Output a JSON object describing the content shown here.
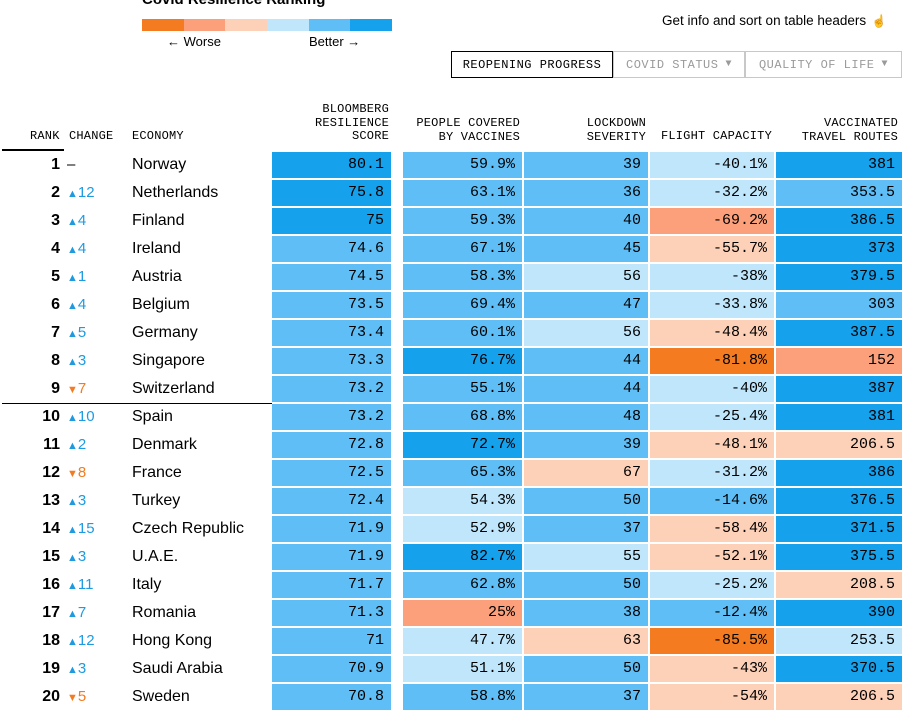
{
  "title": "Covid Resilience Ranking",
  "legend": {
    "colors": [
      "#f47b20",
      "#fba07a",
      "#fdd0b8",
      "#bfe6fb",
      "#5fbef5",
      "#16a1ec"
    ],
    "worse_label": "← Worse",
    "better_label": "Better →"
  },
  "info_text": "Get info and sort on table headers",
  "info_icon": "pointer-hand-icon",
  "tabs": [
    {
      "label": "REOPENING PROGRESS",
      "active": true
    },
    {
      "label": "COVID STATUS",
      "active": false
    },
    {
      "label": "QUALITY OF LIFE",
      "active": false
    }
  ],
  "headers": {
    "rank": "RANK",
    "change": "CHANGE",
    "economy": "ECONOMY",
    "brs": [
      "BLOOMBERG",
      "RESILIENCE",
      "SCORE"
    ],
    "people": [
      "PEOPLE COVERED",
      "BY VACCINES"
    ],
    "lockdown": [
      "LOCKDOWN",
      "SEVERITY"
    ],
    "flight": [
      "FLIGHT CAPACITY"
    ],
    "vaccinated": [
      "VACCINATED",
      "TRAVEL ROUTES"
    ]
  },
  "colors": {
    "up_arrow": "#1e9be0",
    "down_arrow": "#f47b20"
  },
  "rows": [
    {
      "rank": "1",
      "dir": "none",
      "change": "–",
      "economy": "Norway",
      "brs": "80.1",
      "people": "59.9%",
      "lockdown": "39",
      "flight": "-40.1%",
      "vacc": "381",
      "cc": [
        "#16a1ec",
        "#5fbef5",
        "#5fbef5",
        "#bfe6fb",
        "#16a1ec"
      ]
    },
    {
      "rank": "2",
      "dir": "up",
      "change": "12",
      "economy": "Netherlands",
      "brs": "75.8",
      "people": "63.1%",
      "lockdown": "36",
      "flight": "-32.2%",
      "vacc": "353.5",
      "cc": [
        "#16a1ec",
        "#5fbef5",
        "#5fbef5",
        "#bfe6fb",
        "#5fbef5"
      ]
    },
    {
      "rank": "3",
      "dir": "up",
      "change": "4",
      "economy": "Finland",
      "brs": "75",
      "people": "59.3%",
      "lockdown": "40",
      "flight": "-69.2%",
      "vacc": "386.5",
      "cc": [
        "#16a1ec",
        "#5fbef5",
        "#5fbef5",
        "#fba07a",
        "#16a1ec"
      ]
    },
    {
      "rank": "4",
      "dir": "up",
      "change": "4",
      "economy": "Ireland",
      "brs": "74.6",
      "people": "67.1%",
      "lockdown": "45",
      "flight": "-55.7%",
      "vacc": "373",
      "cc": [
        "#5fbef5",
        "#5fbef5",
        "#5fbef5",
        "#fdd0b8",
        "#16a1ec"
      ]
    },
    {
      "rank": "5",
      "dir": "up",
      "change": "1",
      "economy": "Austria",
      "brs": "74.5",
      "people": "58.3%",
      "lockdown": "56",
      "flight": "-38%",
      "vacc": "379.5",
      "cc": [
        "#5fbef5",
        "#5fbef5",
        "#bfe6fb",
        "#bfe6fb",
        "#16a1ec"
      ]
    },
    {
      "rank": "6",
      "dir": "up",
      "change": "4",
      "economy": "Belgium",
      "brs": "73.5",
      "people": "69.4%",
      "lockdown": "47",
      "flight": "-33.8%",
      "vacc": "303",
      "cc": [
        "#5fbef5",
        "#5fbef5",
        "#5fbef5",
        "#bfe6fb",
        "#5fbef5"
      ]
    },
    {
      "rank": "7",
      "dir": "up",
      "change": "5",
      "economy": "Germany",
      "brs": "73.4",
      "people": "60.1%",
      "lockdown": "56",
      "flight": "-48.4%",
      "vacc": "387.5",
      "cc": [
        "#5fbef5",
        "#5fbef5",
        "#bfe6fb",
        "#fdd0b8",
        "#16a1ec"
      ]
    },
    {
      "rank": "8",
      "dir": "up",
      "change": "3",
      "economy": "Singapore",
      "brs": "73.3",
      "people": "76.7%",
      "lockdown": "44",
      "flight": "-81.8%",
      "vacc": "152",
      "cc": [
        "#5fbef5",
        "#16a1ec",
        "#5fbef5",
        "#f47b20",
        "#fba07a"
      ]
    },
    {
      "rank": "9",
      "dir": "down",
      "change": "7",
      "economy": "Switzerland",
      "brs": "73.2",
      "people": "55.1%",
      "lockdown": "44",
      "flight": "-40%",
      "vacc": "387",
      "cc": [
        "#5fbef5",
        "#5fbef5",
        "#5fbef5",
        "#bfe6fb",
        "#16a1ec"
      ]
    },
    {
      "rank": "10",
      "dir": "up",
      "change": "10",
      "economy": "Spain",
      "brs": "73.2",
      "people": "68.8%",
      "lockdown": "48",
      "flight": "-25.4%",
      "vacc": "381",
      "cc": [
        "#5fbef5",
        "#5fbef5",
        "#5fbef5",
        "#bfe6fb",
        "#16a1ec"
      ]
    },
    {
      "rank": "11",
      "dir": "up",
      "change": "2",
      "economy": "Denmark",
      "brs": "72.8",
      "people": "72.7%",
      "lockdown": "39",
      "flight": "-48.1%",
      "vacc": "206.5",
      "cc": [
        "#5fbef5",
        "#16a1ec",
        "#5fbef5",
        "#fdd0b8",
        "#fdd0b8"
      ]
    },
    {
      "rank": "12",
      "dir": "down",
      "change": "8",
      "economy": "France",
      "brs": "72.5",
      "people": "65.3%",
      "lockdown": "67",
      "flight": "-31.2%",
      "vacc": "386",
      "cc": [
        "#5fbef5",
        "#5fbef5",
        "#fdd0b8",
        "#bfe6fb",
        "#16a1ec"
      ]
    },
    {
      "rank": "13",
      "dir": "up",
      "change": "3",
      "economy": "Turkey",
      "brs": "72.4",
      "people": "54.3%",
      "lockdown": "50",
      "flight": "-14.6%",
      "vacc": "376.5",
      "cc": [
        "#5fbef5",
        "#bfe6fb",
        "#5fbef5",
        "#5fbef5",
        "#16a1ec"
      ]
    },
    {
      "rank": "14",
      "dir": "up",
      "change": "15",
      "economy": "Czech Republic",
      "brs": "71.9",
      "people": "52.9%",
      "lockdown": "37",
      "flight": "-58.4%",
      "vacc": "371.5",
      "cc": [
        "#5fbef5",
        "#bfe6fb",
        "#5fbef5",
        "#fdd0b8",
        "#16a1ec"
      ]
    },
    {
      "rank": "15",
      "dir": "up",
      "change": "3",
      "economy": "U.A.E.",
      "brs": "71.9",
      "people": "82.7%",
      "lockdown": "55",
      "flight": "-52.1%",
      "vacc": "375.5",
      "cc": [
        "#5fbef5",
        "#16a1ec",
        "#bfe6fb",
        "#fdd0b8",
        "#16a1ec"
      ]
    },
    {
      "rank": "16",
      "dir": "up",
      "change": "11",
      "economy": "Italy",
      "brs": "71.7",
      "people": "62.8%",
      "lockdown": "50",
      "flight": "-25.2%",
      "vacc": "208.5",
      "cc": [
        "#5fbef5",
        "#5fbef5",
        "#5fbef5",
        "#bfe6fb",
        "#fdd0b8"
      ]
    },
    {
      "rank": "17",
      "dir": "up",
      "change": "7",
      "economy": "Romania",
      "brs": "71.3",
      "people": "25%",
      "lockdown": "38",
      "flight": "-12.4%",
      "vacc": "390",
      "cc": [
        "#5fbef5",
        "#fba07a",
        "#5fbef5",
        "#5fbef5",
        "#16a1ec"
      ]
    },
    {
      "rank": "18",
      "dir": "up",
      "change": "12",
      "economy": "Hong Kong",
      "brs": "71",
      "people": "47.7%",
      "lockdown": "63",
      "flight": "-85.5%",
      "vacc": "253.5",
      "cc": [
        "#5fbef5",
        "#bfe6fb",
        "#fdd0b8",
        "#f47b20",
        "#bfe6fb"
      ]
    },
    {
      "rank": "19",
      "dir": "up",
      "change": "3",
      "economy": "Saudi Arabia",
      "brs": "70.9",
      "people": "51.1%",
      "lockdown": "50",
      "flight": "-43%",
      "vacc": "370.5",
      "cc": [
        "#5fbef5",
        "#bfe6fb",
        "#5fbef5",
        "#fdd0b8",
        "#16a1ec"
      ]
    },
    {
      "rank": "20",
      "dir": "down",
      "change": "5",
      "economy": "Sweden",
      "brs": "70.8",
      "people": "58.8%",
      "lockdown": "37",
      "flight": "-54%",
      "vacc": "206.5",
      "cc": [
        "#5fbef5",
        "#5fbef5",
        "#5fbef5",
        "#fdd0b8",
        "#fdd0b8"
      ]
    }
  ]
}
